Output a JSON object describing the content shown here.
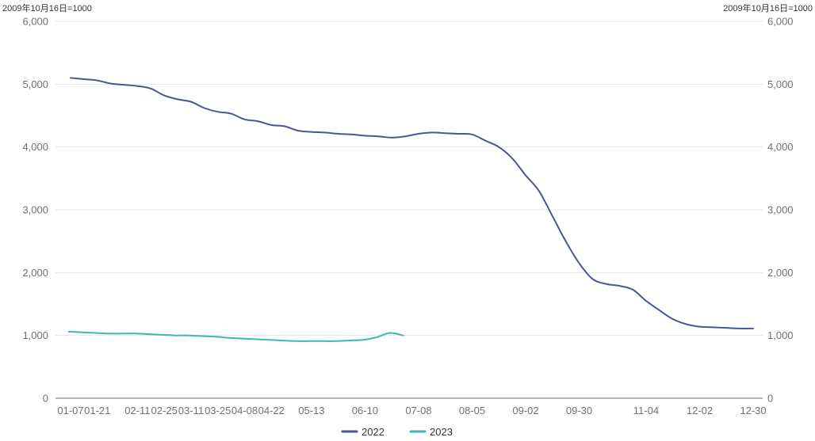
{
  "chart_data": {
    "type": "line",
    "title": "",
    "y_unit_left": "2009年10月16日=1000",
    "y_unit_right": "2009年10月16日=1000",
    "ylim": [
      0,
      6000
    ],
    "y_ticks": [
      0,
      1000,
      2000,
      3000,
      4000,
      5000,
      6000
    ],
    "y_tick_labels": [
      "0",
      "1,000",
      "2,000",
      "3,000",
      "4,000",
      "5,000",
      "6,000"
    ],
    "x_ticks": [
      "01-07",
      "01-21",
      "02-11",
      "02-25",
      "03-11",
      "03-25",
      "04-08",
      "04-22",
      "05-13",
      "06-10",
      "07-08",
      "08-05",
      "09-02",
      "09-30",
      "11-04",
      "12-02",
      "12-30"
    ],
    "grid": true,
    "legend_position": "bottom-center",
    "series": [
      {
        "name": "2022",
        "color": "#4a5694",
        "x": [
          "01-07",
          "01-14",
          "01-21",
          "01-28",
          "02-04",
          "02-11",
          "02-18",
          "02-25",
          "03-04",
          "03-11",
          "03-18",
          "03-25",
          "04-01",
          "04-08",
          "04-15",
          "04-22",
          "04-29",
          "05-06",
          "05-13",
          "05-20",
          "05-27",
          "06-03",
          "06-10",
          "06-17",
          "06-24",
          "07-01",
          "07-08",
          "07-15",
          "07-22",
          "07-29",
          "08-05",
          "08-12",
          "08-19",
          "08-26",
          "09-02",
          "09-09",
          "09-16",
          "09-23",
          "09-30",
          "10-07",
          "10-14",
          "10-21",
          "10-28",
          "11-04",
          "11-11",
          "11-18",
          "11-25",
          "12-02",
          "12-09",
          "12-16",
          "12-23",
          "12-30"
        ],
        "values": [
          5100,
          5080,
          5060,
          5010,
          4990,
          4970,
          4930,
          4820,
          4760,
          4720,
          4620,
          4560,
          4530,
          4440,
          4410,
          4350,
          4330,
          4260,
          4240,
          4230,
          4210,
          4200,
          4180,
          4170,
          4150,
          4170,
          4210,
          4230,
          4220,
          4210,
          4200,
          4100,
          4000,
          3820,
          3550,
          3300,
          2900,
          2500,
          2150,
          1900,
          1820,
          1790,
          1730,
          1550,
          1400,
          1260,
          1180,
          1140,
          1130,
          1120,
          1110,
          1110
        ]
      },
      {
        "name": "2023",
        "color": "#3fb8af",
        "x": [
          "01-06",
          "01-13",
          "01-20",
          "01-27",
          "02-03",
          "02-10",
          "02-17",
          "02-24",
          "03-03",
          "03-10",
          "03-17",
          "03-24",
          "03-31",
          "04-07",
          "04-14",
          "04-21",
          "04-28",
          "05-05",
          "05-12",
          "05-19",
          "05-26",
          "06-02",
          "06-09",
          "06-16",
          "06-23",
          "06-30"
        ],
        "values": [
          1060,
          1050,
          1040,
          1030,
          1030,
          1030,
          1020,
          1010,
          1000,
          1000,
          990,
          980,
          960,
          950,
          940,
          930,
          920,
          910,
          910,
          910,
          910,
          920,
          930,
          970,
          1040,
          1000
        ]
      }
    ]
  }
}
